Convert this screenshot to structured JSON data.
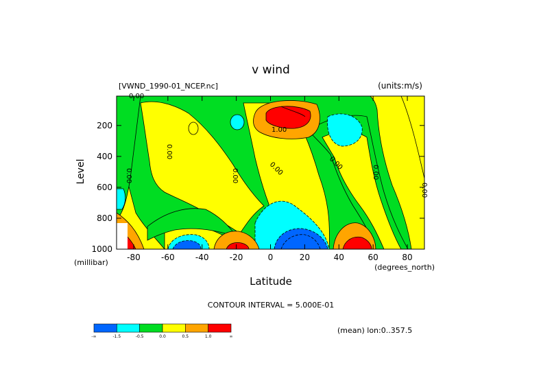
{
  "header": {
    "title": "v wind",
    "file": "[VWND_1990-01_NCEP.nc]",
    "units": "(units:m/s)"
  },
  "footer": {
    "contour_interval": "CONTOUR INTERVAL = 5.000E-01",
    "mean_label": "(mean) lon:0..357.5"
  },
  "colors": {
    "blue": "#0066ff",
    "cyan": "#00ffff",
    "green": "#00dd22",
    "yellow": "#ffff00",
    "orange": "#ffa500",
    "red": "#ff0000"
  },
  "chart_data": {
    "type": "heatmap",
    "title": "v wind",
    "xlabel": "Latitude",
    "ylabel": "Level",
    "x_units": "(degrees_north)",
    "y_units": "(millibar)",
    "xlim": [
      -90,
      90
    ],
    "ylim": [
      1000,
      10
    ],
    "x_ticks": [
      -80,
      -60,
      -40,
      -20,
      0,
      20,
      40,
      60,
      80
    ],
    "y_ticks": [
      200,
      400,
      600,
      800,
      1000
    ],
    "contour_labels": [
      "0.00",
      "0.00",
      "0.00",
      "0.00",
      "0.00",
      "0.00",
      "0.00",
      "0.00",
      "1.00"
    ],
    "legend": {
      "labels": [
        "-∞",
        "-1.5",
        "-0.5",
        "0.0",
        "0.5",
        "1.0",
        "∞"
      ],
      "colors": [
        "#0066ff",
        "#00ffff",
        "#00dd22",
        "#ffff00",
        "#ffa500",
        "#ff0000"
      ]
    }
  }
}
